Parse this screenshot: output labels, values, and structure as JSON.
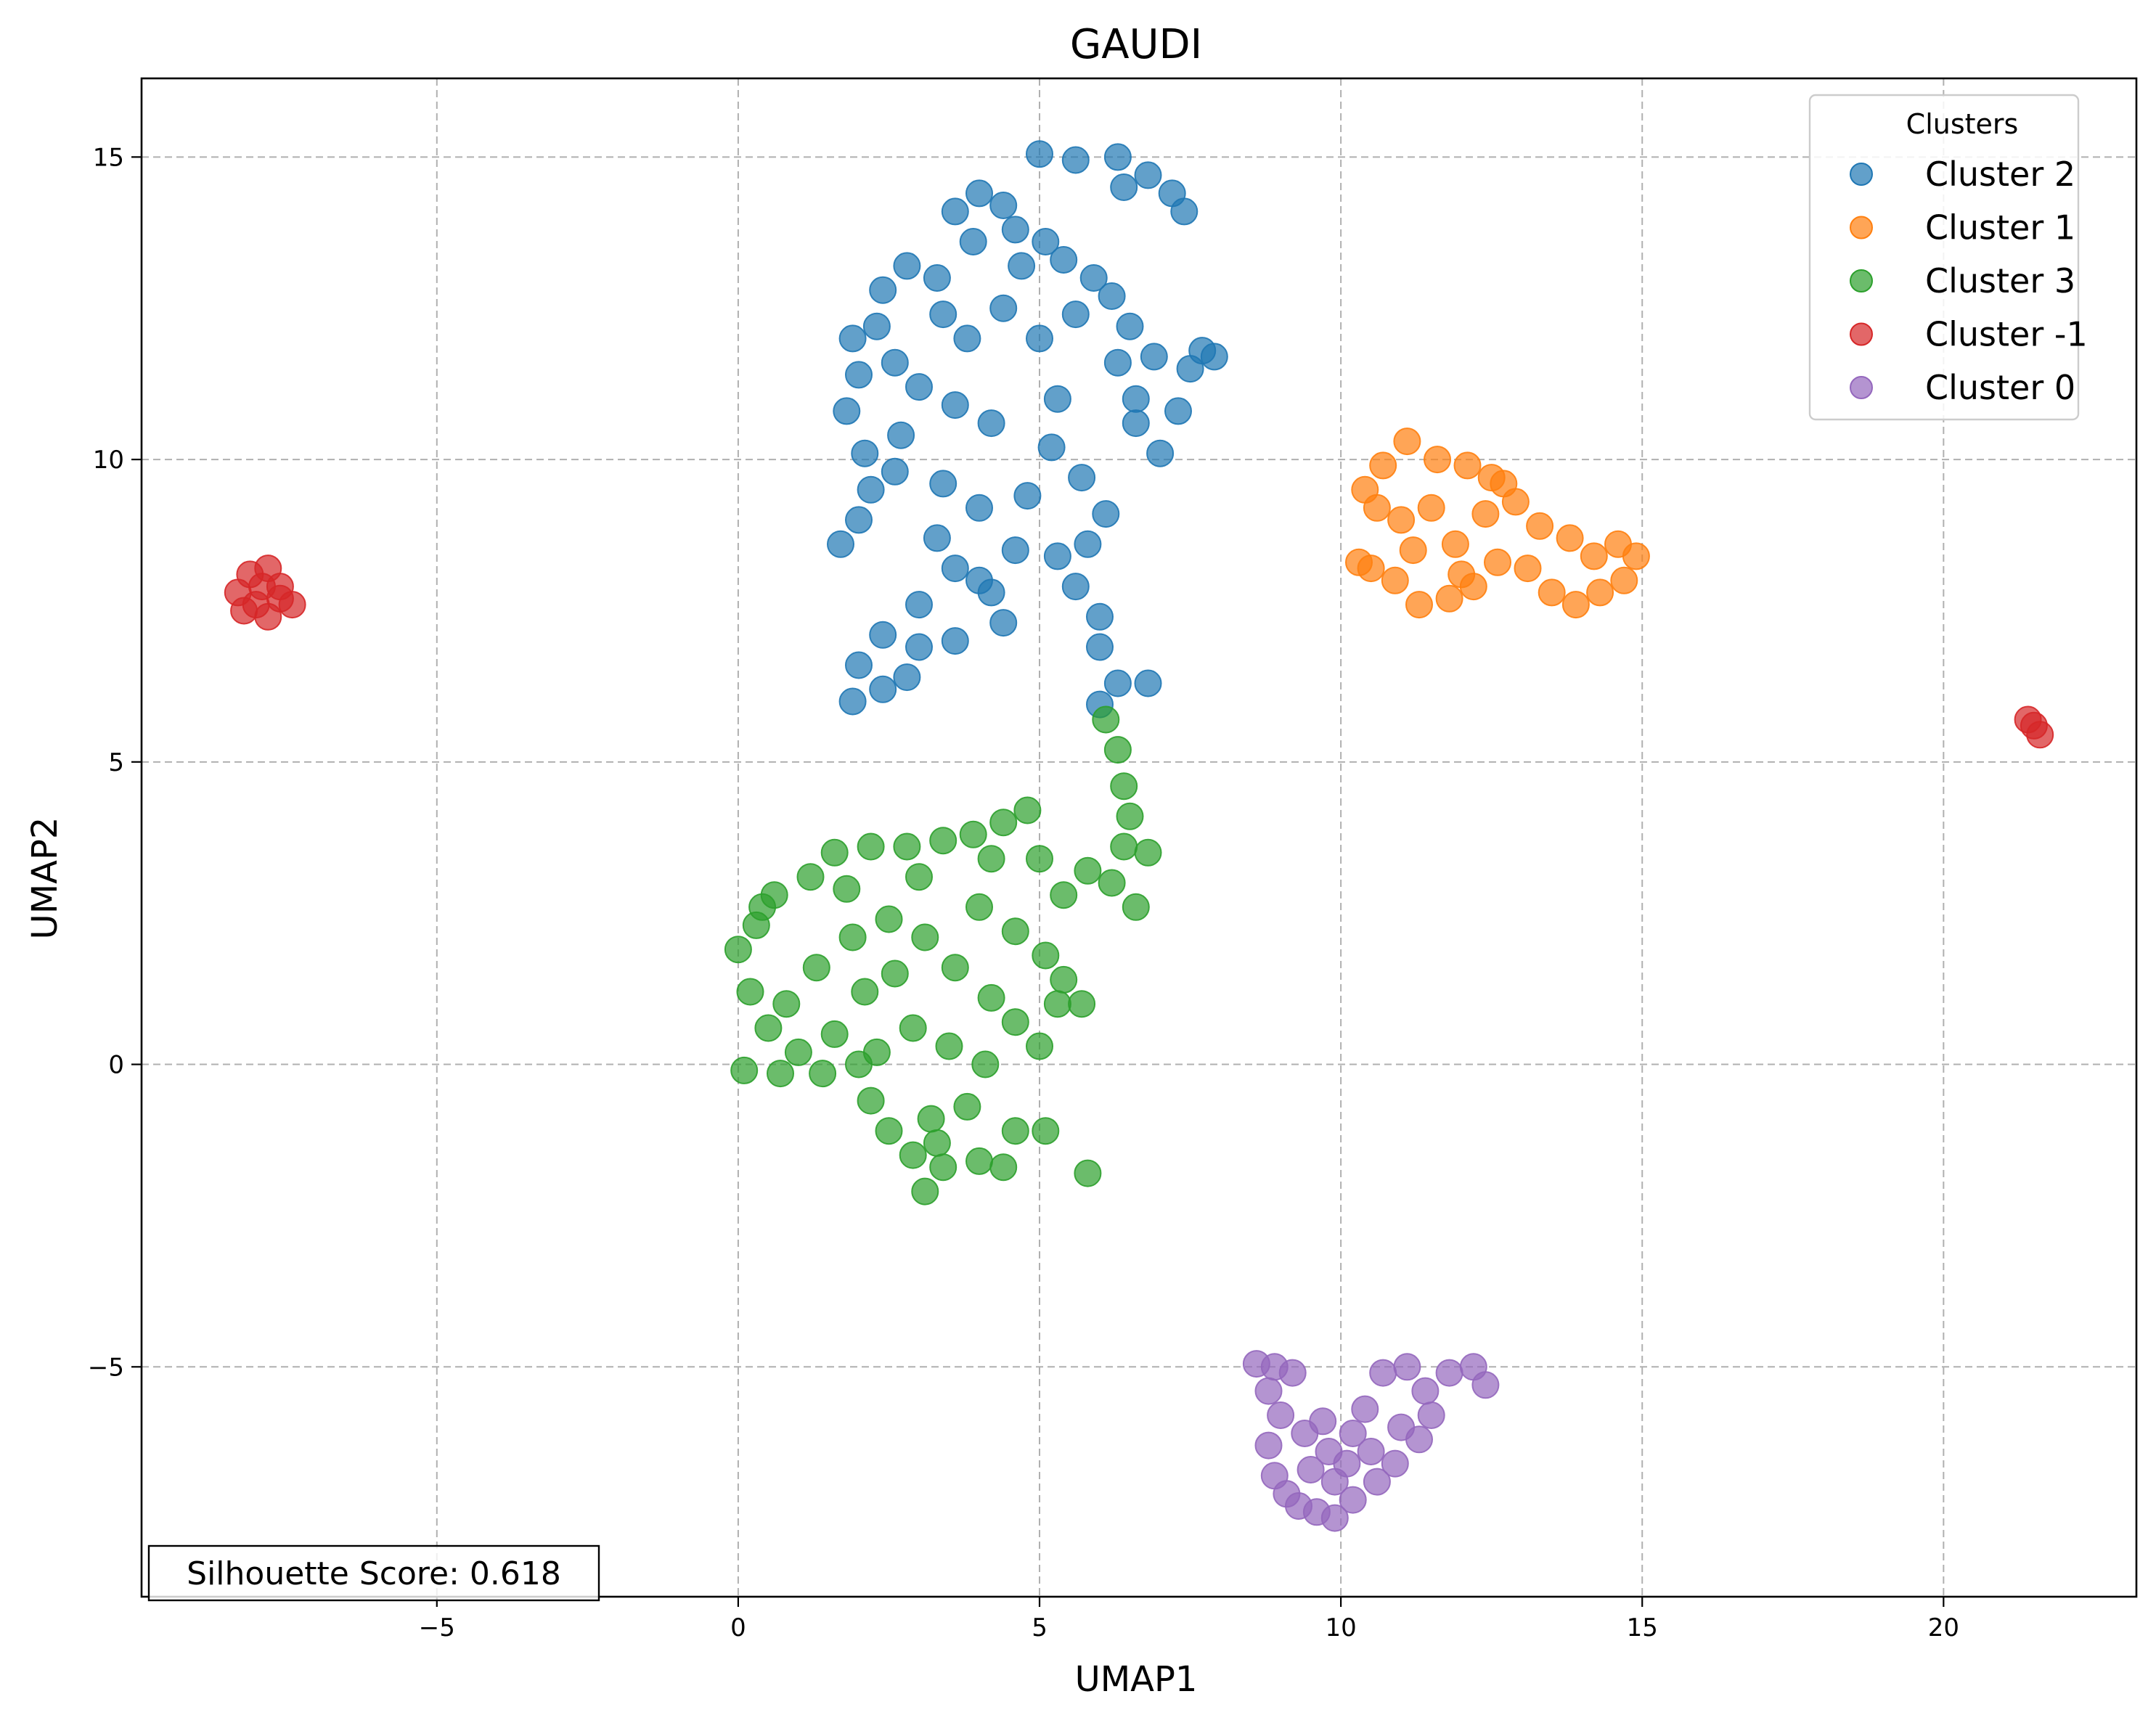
{
  "chart_data": {
    "type": "scatter",
    "title": "GAUDI",
    "xlabel": "UMAP1",
    "ylabel": "UMAP2",
    "xlim": [
      -9.9,
      23.2
    ],
    "ylim": [
      -8.8,
      16.3
    ],
    "xticks": [
      -5,
      0,
      5,
      10,
      15,
      20
    ],
    "yticks": [
      -5,
      0,
      5,
      10,
      15
    ],
    "xtick_labels": [
      "−5",
      "0",
      "5",
      "10",
      "15",
      "20"
    ],
    "ytick_labels": [
      "−5",
      "0",
      "5",
      "10",
      "15"
    ],
    "grid": true,
    "legend": {
      "title": "Clusters",
      "placement": "top-right"
    },
    "annotation": "Silhouette Score: 0.618",
    "annotation_placement": "bottom-left",
    "point_alpha": 0.7,
    "series": [
      {
        "name": "Cluster 2",
        "color": "#1f77b4",
        "points": [
          [
            5.0,
            15.05
          ],
          [
            5.6,
            14.95
          ],
          [
            6.3,
            15.0
          ],
          [
            6.8,
            14.7
          ],
          [
            7.2,
            14.4
          ],
          [
            7.4,
            14.1
          ],
          [
            4.0,
            14.4
          ],
          [
            4.4,
            14.2
          ],
          [
            3.6,
            14.1
          ],
          [
            3.9,
            13.6
          ],
          [
            4.6,
            13.8
          ],
          [
            5.1,
            13.6
          ],
          [
            3.3,
            13.0
          ],
          [
            2.8,
            13.2
          ],
          [
            2.4,
            12.8
          ],
          [
            2.3,
            12.2
          ],
          [
            2.6,
            11.6
          ],
          [
            3.0,
            11.2
          ],
          [
            2.0,
            11.4
          ],
          [
            1.8,
            10.8
          ],
          [
            2.1,
            10.1
          ],
          [
            2.6,
            9.8
          ],
          [
            3.4,
            9.6
          ],
          [
            4.0,
            9.2
          ],
          [
            1.7,
            8.6
          ],
          [
            2.0,
            9.0
          ],
          [
            3.3,
            8.7
          ],
          [
            3.6,
            8.2
          ],
          [
            4.2,
            7.8
          ],
          [
            4.4,
            7.3
          ],
          [
            3.6,
            7.0
          ],
          [
            3.0,
            6.9
          ],
          [
            2.4,
            7.1
          ],
          [
            2.0,
            6.6
          ],
          [
            1.9,
            6.0
          ],
          [
            2.4,
            6.2
          ],
          [
            3.4,
            12.4
          ],
          [
            3.8,
            12.0
          ],
          [
            4.4,
            12.5
          ],
          [
            5.0,
            12.0
          ],
          [
            5.3,
            11.0
          ],
          [
            5.6,
            12.4
          ],
          [
            5.4,
            13.3
          ],
          [
            5.9,
            13.0
          ],
          [
            6.2,
            12.7
          ],
          [
            6.5,
            12.2
          ],
          [
            6.3,
            11.6
          ],
          [
            6.6,
            11.0
          ],
          [
            6.9,
            11.7
          ],
          [
            7.5,
            11.5
          ],
          [
            7.9,
            11.7
          ],
          [
            7.3,
            10.8
          ],
          [
            7.0,
            10.1
          ],
          [
            6.6,
            10.6
          ],
          [
            5.2,
            10.2
          ],
          [
            5.7,
            9.7
          ],
          [
            6.1,
            9.1
          ],
          [
            5.8,
            8.6
          ],
          [
            5.6,
            7.9
          ],
          [
            6.0,
            7.4
          ],
          [
            6.0,
            6.9
          ],
          [
            6.3,
            6.3
          ],
          [
            6.8,
            6.3
          ],
          [
            6.0,
            5.95
          ],
          [
            4.6,
            8.5
          ],
          [
            4.8,
            9.4
          ],
          [
            2.7,
            10.4
          ],
          [
            3.6,
            10.9
          ],
          [
            4.2,
            10.6
          ],
          [
            1.9,
            12.0
          ],
          [
            3.0,
            7.6
          ],
          [
            4.7,
            13.2
          ],
          [
            6.4,
            14.5
          ],
          [
            7.7,
            11.8
          ],
          [
            2.2,
            9.5
          ],
          [
            5.3,
            8.4
          ],
          [
            4.0,
            8.0
          ],
          [
            2.8,
            6.4
          ]
        ]
      },
      {
        "name": "Cluster 1",
        "color": "#ff7f0e",
        "points": [
          [
            10.4,
            9.5
          ],
          [
            10.7,
            9.9
          ],
          [
            11.1,
            10.3
          ],
          [
            11.6,
            10.0
          ],
          [
            12.1,
            9.9
          ],
          [
            12.5,
            9.7
          ],
          [
            10.5,
            8.2
          ],
          [
            10.9,
            8.0
          ],
          [
            11.3,
            7.6
          ],
          [
            11.8,
            7.7
          ],
          [
            12.2,
            7.9
          ],
          [
            12.6,
            8.3
          ],
          [
            11.0,
            9.0
          ],
          [
            11.5,
            9.2
          ],
          [
            11.9,
            8.6
          ],
          [
            12.4,
            9.1
          ],
          [
            12.9,
            9.3
          ],
          [
            13.3,
            8.9
          ],
          [
            13.8,
            8.7
          ],
          [
            14.2,
            8.4
          ],
          [
            14.6,
            8.6
          ],
          [
            14.9,
            8.4
          ],
          [
            14.3,
            7.8
          ],
          [
            13.9,
            7.6
          ],
          [
            13.5,
            7.8
          ],
          [
            13.1,
            8.2
          ],
          [
            12.0,
            8.1
          ],
          [
            11.2,
            8.5
          ],
          [
            10.3,
            8.3
          ],
          [
            14.7,
            8.0
          ],
          [
            12.7,
            9.6
          ],
          [
            10.6,
            9.2
          ]
        ]
      },
      {
        "name": "Cluster 3",
        "color": "#2ca02c",
        "points": [
          [
            6.1,
            5.7
          ],
          [
            6.3,
            5.2
          ],
          [
            6.4,
            4.6
          ],
          [
            6.5,
            4.1
          ],
          [
            6.4,
            3.6
          ],
          [
            6.8,
            3.5
          ],
          [
            6.6,
            2.6
          ],
          [
            6.2,
            3.0
          ],
          [
            5.8,
            3.2
          ],
          [
            5.4,
            2.8
          ],
          [
            4.8,
            4.2
          ],
          [
            4.4,
            4.0
          ],
          [
            3.9,
            3.8
          ],
          [
            3.4,
            3.7
          ],
          [
            2.8,
            3.6
          ],
          [
            2.2,
            3.6
          ],
          [
            1.6,
            3.5
          ],
          [
            1.2,
            3.1
          ],
          [
            0.6,
            2.8
          ],
          [
            0.3,
            2.3
          ],
          [
            0.0,
            1.9
          ],
          [
            0.2,
            1.2
          ],
          [
            0.5,
            0.6
          ],
          [
            0.1,
            -0.1
          ],
          [
            0.7,
            -0.15
          ],
          [
            1.4,
            -0.15
          ],
          [
            2.0,
            0.0
          ],
          [
            2.2,
            -0.6
          ],
          [
            2.5,
            -1.1
          ],
          [
            2.9,
            -1.5
          ],
          [
            3.1,
            -2.1
          ],
          [
            3.4,
            -1.7
          ],
          [
            4.0,
            -1.6
          ],
          [
            4.4,
            -1.7
          ],
          [
            4.6,
            -1.1
          ],
          [
            5.1,
            -1.1
          ],
          [
            5.8,
            -1.8
          ],
          [
            5.0,
            0.3
          ],
          [
            4.6,
            0.7
          ],
          [
            4.2,
            1.1
          ],
          [
            3.6,
            1.6
          ],
          [
            3.1,
            2.1
          ],
          [
            2.5,
            2.4
          ],
          [
            1.9,
            2.1
          ],
          [
            1.3,
            1.6
          ],
          [
            0.8,
            1.0
          ],
          [
            1.6,
            0.5
          ],
          [
            2.3,
            0.2
          ],
          [
            2.9,
            0.6
          ],
          [
            3.5,
            0.3
          ],
          [
            4.1,
            0.0
          ],
          [
            3.8,
            -0.7
          ],
          [
            3.2,
            -0.9
          ],
          [
            2.6,
            1.5
          ],
          [
            1.8,
            2.9
          ],
          [
            3.0,
            3.1
          ],
          [
            4.0,
            2.6
          ],
          [
            4.6,
            2.2
          ],
          [
            5.1,
            1.8
          ],
          [
            5.4,
            1.4
          ],
          [
            5.7,
            1.0
          ],
          [
            5.0,
            3.4
          ],
          [
            4.2,
            3.4
          ],
          [
            0.4,
            2.6
          ],
          [
            1.0,
            0.2
          ],
          [
            5.3,
            1.0
          ],
          [
            3.3,
            -1.3
          ],
          [
            2.1,
            1.2
          ]
        ]
      },
      {
        "name": "Cluster -1",
        "color": "#d62728",
        "points": [
          [
            -8.3,
            7.8
          ],
          [
            -8.1,
            8.1
          ],
          [
            -7.8,
            8.2
          ],
          [
            -7.6,
            7.9
          ],
          [
            -8.0,
            7.6
          ],
          [
            -7.8,
            7.4
          ],
          [
            -7.4,
            7.6
          ],
          [
            -8.2,
            7.5
          ],
          [
            -7.6,
            7.7
          ],
          [
            -7.9,
            7.9
          ],
          [
            21.4,
            5.7
          ],
          [
            21.5,
            5.6
          ],
          [
            21.6,
            5.45
          ]
        ]
      },
      {
        "name": "Cluster 0",
        "color": "#9467bd",
        "points": [
          [
            8.6,
            -4.95
          ],
          [
            8.9,
            -5.0
          ],
          [
            9.2,
            -5.1
          ],
          [
            8.8,
            -5.4
          ],
          [
            9.0,
            -5.8
          ],
          [
            8.8,
            -6.3
          ],
          [
            8.9,
            -6.8
          ],
          [
            9.1,
            -7.1
          ],
          [
            9.3,
            -7.3
          ],
          [
            9.6,
            -7.4
          ],
          [
            9.9,
            -7.5
          ],
          [
            10.2,
            -7.2
          ],
          [
            10.6,
            -6.9
          ],
          [
            10.9,
            -6.6
          ],
          [
            11.3,
            -6.2
          ],
          [
            11.5,
            -5.8
          ],
          [
            11.4,
            -5.4
          ],
          [
            11.8,
            -5.1
          ],
          [
            12.2,
            -5.0
          ],
          [
            12.4,
            -5.3
          ],
          [
            11.1,
            -5.0
          ],
          [
            10.7,
            -5.1
          ],
          [
            10.4,
            -5.7
          ],
          [
            10.2,
            -6.1
          ],
          [
            9.8,
            -6.4
          ],
          [
            9.5,
            -6.7
          ],
          [
            9.4,
            -6.1
          ],
          [
            9.7,
            -5.9
          ],
          [
            10.5,
            -6.4
          ],
          [
            11.0,
            -6.0
          ],
          [
            9.9,
            -6.9
          ],
          [
            10.1,
            -6.6
          ]
        ]
      }
    ]
  }
}
